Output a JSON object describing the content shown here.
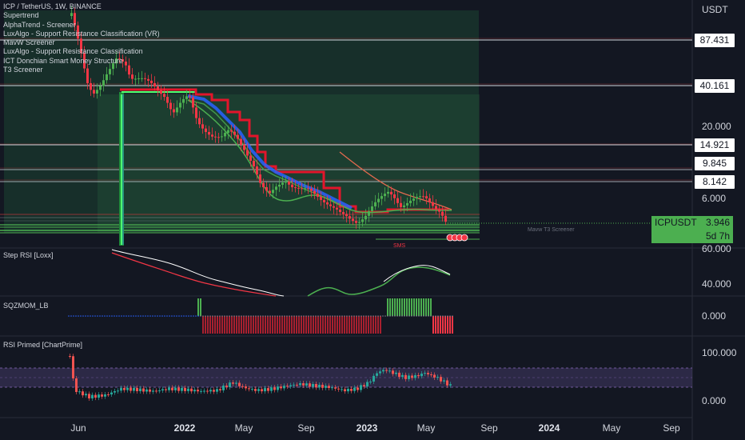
{
  "legend": {
    "symbol_line": "ICP / TetherUS, 1W, BINANCE",
    "indicators": [
      "Supertrend",
      "AlphaTrend - Screener",
      "LuxAlgo - Support Resistance Classification (VR)",
      "MavW Screener",
      "LuxAlgo - Support Resistance Classification",
      "ICT Donchian Smart Money Structure",
      "T3 Screener"
    ]
  },
  "panes": {
    "rsi_step": "Step RSI [Loxx]",
    "sqzmom": "SQZMOM_LB",
    "rsi_primed": "RSI Primed [ChartPrime]"
  },
  "axis": {
    "currency": "USDT",
    "price_ticks": [
      "20.000",
      "6.000"
    ],
    "rsi_step_ticks": [
      "60.000",
      "40.000"
    ],
    "sqz_ticks": [
      "0.000"
    ],
    "rsi_primed_ticks": [
      "100.000",
      "0.000"
    ]
  },
  "levels": [
    {
      "label": "87.431",
      "color": "#ffffff"
    },
    {
      "label": "40.161",
      "color": "#ffffff"
    },
    {
      "label": "14.921",
      "color": "#ffffff"
    },
    {
      "label": "9.845",
      "color": "#ffffff"
    },
    {
      "label": "8.142",
      "color": "#ffffff"
    }
  ],
  "ticker": {
    "name": "ICPUSDT",
    "price": "3.946",
    "countdown": "5d 7h",
    "color": "#4caf50"
  },
  "annotations": {
    "sms": "SMS",
    "screener": "Mavw T3 Screener"
  },
  "time_axis": [
    {
      "label": "Jun",
      "bold": false
    },
    {
      "label": "2022",
      "bold": true
    },
    {
      "label": "May",
      "bold": false
    },
    {
      "label": "Sep",
      "bold": false
    },
    {
      "label": "2023",
      "bold": true
    },
    {
      "label": "May",
      "bold": false
    },
    {
      "label": "Sep",
      "bold": false
    },
    {
      "label": "2024",
      "bold": true
    },
    {
      "label": "May",
      "bold": false
    },
    {
      "label": "Sep",
      "bold": false
    }
  ],
  "colors": {
    "background": "#131722",
    "up": "#4caf50",
    "down": "#f23645",
    "supertrend_down": "#e3152b",
    "ribbon_blue": "#2962ff",
    "zone": "#1b4332"
  }
}
